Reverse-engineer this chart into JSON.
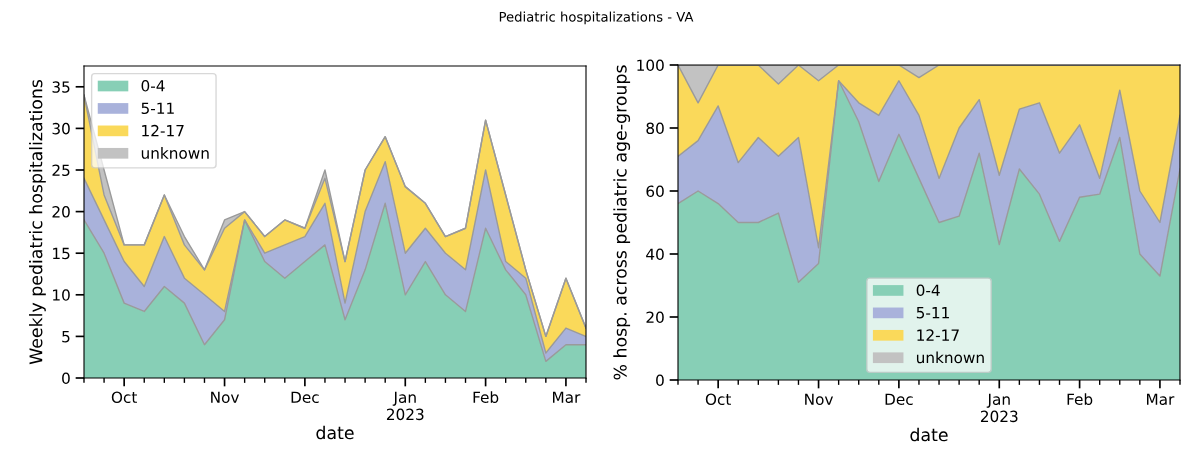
{
  "chart_data": [
    {
      "type": "area",
      "stacked": true,
      "title": "Pediatric hospitalizations - VA",
      "xlabel": "date",
      "ylabel": "Weekly pediatric hospitalizations",
      "legend": "top left",
      "x": [
        "2022-09-17",
        "2022-09-24",
        "2022-10-01",
        "2022-10-08",
        "2022-10-15",
        "2022-10-22",
        "2022-10-29",
        "2022-11-05",
        "2022-11-12",
        "2022-11-19",
        "2022-11-26",
        "2022-12-03",
        "2022-12-10",
        "2022-12-17",
        "2022-12-24",
        "2022-12-31",
        "2023-01-07",
        "2023-01-14",
        "2023-01-21",
        "2023-01-28",
        "2023-02-04",
        "2023-02-11",
        "2023-02-18",
        "2023-02-25",
        "2023-03-04",
        "2023-03-11"
      ],
      "series": [
        {
          "name": "0-4",
          "color": "#87cfb6",
          "values": [
            19,
            15,
            9,
            8,
            11,
            9,
            4,
            7,
            19,
            14,
            12,
            14,
            16,
            7,
            13,
            21,
            10,
            14,
            10,
            8,
            18,
            13,
            10,
            2,
            4,
            4
          ]
        },
        {
          "name": "5-11",
          "color": "#a9b2db",
          "values": [
            5,
            4,
            5,
            3,
            6,
            3,
            6,
            1,
            0,
            1,
            4,
            3,
            5,
            2,
            7,
            5,
            5,
            4,
            5,
            5,
            7,
            1,
            2,
            1,
            2,
            1
          ]
        },
        {
          "name": "12-17",
          "color": "#fad95a",
          "values": [
            10,
            3,
            2,
            5,
            5,
            4,
            3,
            10,
            1,
            2,
            3,
            1,
            3,
            5,
            5,
            3,
            8,
            3,
            2,
            5,
            6,
            8,
            1,
            2,
            6,
            1
          ]
        },
        {
          "name": "unknown",
          "color": "#c2c2c2",
          "values": [
            0,
            3,
            0,
            0,
            0,
            1,
            0,
            1,
            0,
            0,
            0,
            0,
            1,
            0,
            0,
            0,
            0,
            0,
            0,
            0,
            0,
            0,
            0,
            0,
            0,
            0
          ]
        }
      ],
      "xlim": [
        "2022-09-17",
        "2023-03-11"
      ],
      "xticks": [
        {
          "value": "2022-10-01",
          "label": "Oct"
        },
        {
          "value": "2022-11-05",
          "label": "Nov"
        },
        {
          "value": "2022-12-03",
          "label": "Dec"
        },
        {
          "value": "2023-01-07",
          "label": "Jan\n2023"
        },
        {
          "value": "2023-02-04",
          "label": "Feb"
        },
        {
          "value": "2023-03-04",
          "label": "Mar"
        }
      ],
      "ylim": [
        0,
        37.5
      ],
      "yticks": [
        0,
        5,
        10,
        15,
        20,
        25,
        30,
        35
      ]
    },
    {
      "type": "area",
      "stacked": true,
      "xlabel": "date",
      "ylabel": "% hosp. across pediatric age-groups",
      "legend": "bottom",
      "x": [
        "2022-09-17",
        "2022-09-24",
        "2022-10-01",
        "2022-10-08",
        "2022-10-15",
        "2022-10-22",
        "2022-10-29",
        "2022-11-05",
        "2022-11-12",
        "2022-11-19",
        "2022-11-26",
        "2022-12-03",
        "2022-12-10",
        "2022-12-17",
        "2022-12-24",
        "2022-12-31",
        "2023-01-07",
        "2023-01-14",
        "2023-01-21",
        "2023-01-28",
        "2023-02-04",
        "2023-02-11",
        "2023-02-18",
        "2023-02-25",
        "2023-03-04",
        "2023-03-11"
      ],
      "series": [
        {
          "name": "0-4",
          "color": "#87cfb6",
          "values": [
            56,
            60,
            56,
            50,
            50,
            53,
            31,
            37,
            95,
            82,
            63,
            78,
            64,
            50,
            52,
            72,
            43,
            67,
            59,
            44,
            58,
            59,
            77,
            40,
            33,
            67
          ]
        },
        {
          "name": "5-11",
          "color": "#a9b2db",
          "values": [
            15,
            16,
            31,
            19,
            27,
            18,
            46,
            5,
            0,
            6,
            21,
            17,
            20,
            14,
            28,
            17,
            22,
            19,
            29,
            28,
            23,
            5,
            15,
            20,
            17,
            17
          ]
        },
        {
          "name": "12-17",
          "color": "#fad95a",
          "values": [
            29,
            12,
            13,
            31,
            23,
            23,
            23,
            53,
            5,
            12,
            16,
            5,
            12,
            36,
            20,
            11,
            35,
            14,
            12,
            28,
            19,
            36,
            8,
            40,
            50,
            16
          ]
        },
        {
          "name": "unknown",
          "color": "#c2c2c2",
          "values": [
            0,
            12,
            0,
            0,
            0,
            6,
            0,
            5,
            0,
            0,
            0,
            0,
            4,
            0,
            0,
            0,
            0,
            0,
            0,
            0,
            0,
            0,
            0,
            0,
            0,
            0
          ]
        }
      ],
      "xlim": [
        "2022-09-17",
        "2023-03-11"
      ],
      "xticks": [
        {
          "value": "2022-10-01",
          "label": "Oct"
        },
        {
          "value": "2022-11-05",
          "label": "Nov"
        },
        {
          "value": "2022-12-03",
          "label": "Dec"
        },
        {
          "value": "2023-01-07",
          "label": "Jan\n2023"
        },
        {
          "value": "2023-02-04",
          "label": "Feb"
        },
        {
          "value": "2023-03-04",
          "label": "Mar"
        }
      ],
      "ylim": [
        0,
        100
      ],
      "yticks": [
        0,
        20,
        40,
        60,
        80,
        100
      ]
    }
  ]
}
